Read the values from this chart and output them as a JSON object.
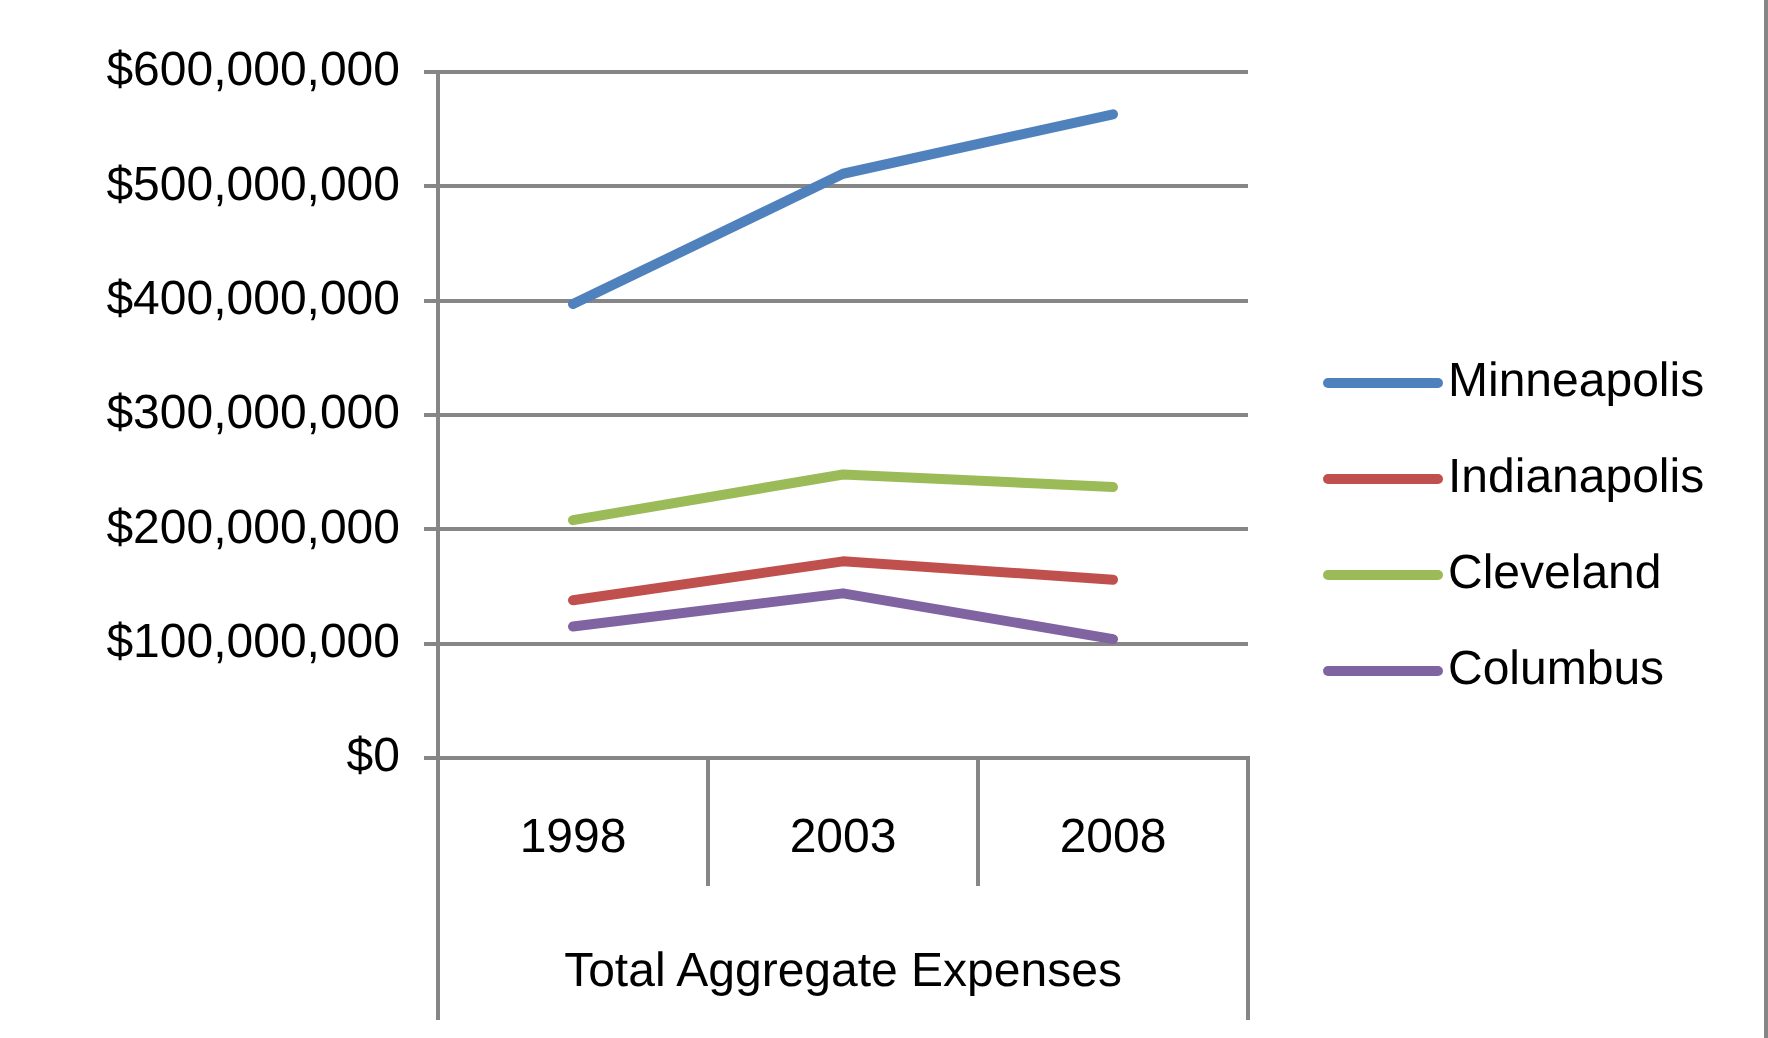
{
  "chart_data": {
    "type": "line",
    "xlabel": "Total Aggregate Expenses",
    "categories": [
      "1998",
      "2003",
      "2008"
    ],
    "series": [
      {
        "name": "Minneapolis",
        "color": "#4f81bd",
        "values": [
          397000000,
          511000000,
          563000000
        ]
      },
      {
        "name": "Indianapolis",
        "color": "#c0504d",
        "values": [
          138000000,
          172000000,
          156000000
        ]
      },
      {
        "name": "Cleveland",
        "color": "#9bbb59",
        "values": [
          208000000,
          248000000,
          237000000
        ]
      },
      {
        "name": "Columbus",
        "color": "#8064a2",
        "values": [
          115000000,
          144000000,
          104000000
        ]
      }
    ],
    "ylim": [
      0,
      600000000
    ],
    "yticks": [
      {
        "value": 0,
        "label": "$0"
      },
      {
        "value": 100000000,
        "label": "$100,000,000"
      },
      {
        "value": 200000000,
        "label": "$200,000,000"
      },
      {
        "value": 300000000,
        "label": "$300,000,000"
      },
      {
        "value": 400000000,
        "label": "$400,000,000"
      },
      {
        "value": 500000000,
        "label": "$500,000,000"
      },
      {
        "value": 600000000,
        "label": "$600,000,000"
      }
    ],
    "grid": "y",
    "legend": "right"
  }
}
